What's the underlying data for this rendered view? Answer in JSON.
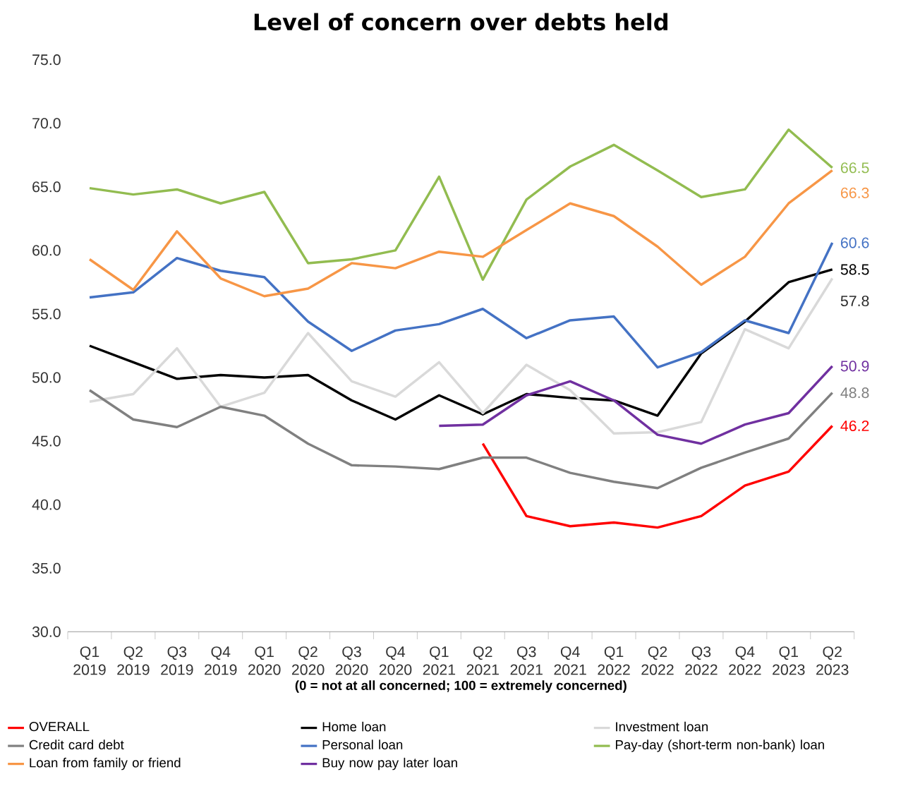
{
  "chart_data": {
    "type": "line",
    "title": "Level of concern over debts held",
    "xlabel": "(0 = not at all concerned; 100 = extremely concerned)",
    "categories": [
      "Q1 2019",
      "Q2 2019",
      "Q3 2019",
      "Q4 2019",
      "Q1 2020",
      "Q2 2020",
      "Q3 2020",
      "Q4 2020",
      "Q1 2021",
      "Q2 2021",
      "Q3 2021",
      "Q4 2021",
      "Q1 2022",
      "Q2 2022",
      "Q3 2022",
      "Q4 2022",
      "Q1 2023",
      "Q2 2023"
    ],
    "series": [
      {
        "name": "OVERALL",
        "color": "#ff0000",
        "values": [
          null,
          null,
          null,
          null,
          null,
          null,
          null,
          null,
          null,
          44.8,
          39.1,
          38.3,
          38.6,
          38.2,
          39.1,
          41.5,
          42.6,
          46.2
        ],
        "value_labels": [
          null,
          null,
          null,
          null,
          null,
          null,
          null,
          null,
          null,
          null,
          null,
          null,
          null,
          null,
          null,
          null,
          null,
          "46.2"
        ]
      },
      {
        "name": "Home loan",
        "color": "#000000",
        "values": [
          52.5,
          51.2,
          49.9,
          50.2,
          50.0,
          50.2,
          48.2,
          46.7,
          48.6,
          47.1,
          48.7,
          48.4,
          48.2,
          47.0,
          51.9,
          54.4,
          57.5,
          58.5
        ],
        "value_labels": [
          null,
          null,
          null,
          null,
          null,
          null,
          null,
          null,
          null,
          null,
          null,
          null,
          null,
          null,
          null,
          null,
          null,
          "58.5"
        ]
      },
      {
        "name": "Investment loan",
        "color": "#d9d9d9",
        "values": [
          48.1,
          48.7,
          52.3,
          47.7,
          48.8,
          53.5,
          49.7,
          48.5,
          51.2,
          47.2,
          51.0,
          49.0,
          45.6,
          45.7,
          46.5,
          53.8,
          52.3,
          57.8
        ],
        "value_labels": [
          null,
          null,
          null,
          null,
          null,
          null,
          null,
          null,
          null,
          null,
          null,
          null,
          null,
          null,
          null,
          null,
          null,
          "57.8"
        ]
      },
      {
        "name": "Credit card debt",
        "color": "#808080",
        "values": [
          49.0,
          46.7,
          46.1,
          47.7,
          47.0,
          44.8,
          43.1,
          43.0,
          42.8,
          43.7,
          43.7,
          42.5,
          41.8,
          41.3,
          42.9,
          44.1,
          45.2,
          48.8
        ],
        "value_labels": [
          null,
          null,
          null,
          null,
          null,
          null,
          null,
          null,
          null,
          null,
          null,
          null,
          null,
          null,
          null,
          null,
          null,
          "48.8"
        ]
      },
      {
        "name": "Personal loan",
        "color": "#4472c4",
        "values": [
          56.3,
          56.7,
          59.4,
          58.4,
          57.9,
          54.4,
          52.1,
          53.7,
          54.2,
          55.4,
          53.1,
          54.5,
          54.8,
          50.8,
          52.0,
          54.5,
          53.5,
          60.6
        ],
        "value_labels": [
          null,
          null,
          null,
          null,
          null,
          null,
          null,
          null,
          null,
          null,
          null,
          null,
          null,
          null,
          null,
          null,
          null,
          "60.6"
        ]
      },
      {
        "name": "Pay-day (short-term non-bank) loan",
        "color": "#92bc50",
        "values": [
          64.9,
          64.4,
          64.8,
          63.7,
          64.6,
          59.0,
          59.3,
          60.0,
          65.8,
          57.7,
          64.0,
          66.6,
          68.3,
          66.3,
          64.2,
          64.8,
          69.5,
          66.5
        ],
        "value_labels": [
          null,
          null,
          null,
          null,
          null,
          null,
          null,
          null,
          null,
          null,
          null,
          null,
          null,
          null,
          null,
          null,
          null,
          "66.5"
        ]
      },
      {
        "name": "Loan from family or friend",
        "color": "#f79646",
        "values": [
          59.3,
          56.9,
          61.5,
          57.8,
          56.4,
          57.0,
          59.0,
          58.6,
          59.9,
          59.5,
          61.6,
          63.7,
          62.7,
          60.3,
          57.3,
          59.5,
          63.7,
          66.3
        ],
        "value_labels": [
          null,
          null,
          null,
          null,
          null,
          null,
          null,
          null,
          null,
          null,
          null,
          null,
          null,
          null,
          null,
          null,
          null,
          "66.3"
        ]
      },
      {
        "name": "Buy now pay later loan",
        "color": "#7030a0",
        "values": [
          null,
          null,
          null,
          null,
          null,
          null,
          null,
          null,
          46.2,
          46.3,
          48.6,
          49.7,
          48.2,
          45.5,
          44.8,
          46.3,
          47.2,
          50.9
        ],
        "value_labels": [
          null,
          null,
          null,
          null,
          null,
          null,
          null,
          null,
          null,
          null,
          null,
          null,
          null,
          null,
          null,
          null,
          null,
          "50.9"
        ]
      }
    ],
    "ylim": [
      30,
      75
    ],
    "yticks": [
      {
        "value": 30,
        "label": "30.0"
      },
      {
        "value": 35,
        "label": "35.0"
      },
      {
        "value": 40,
        "label": "40.0"
      },
      {
        "value": 45,
        "label": "45.0"
      },
      {
        "value": 50,
        "label": "50.0"
      },
      {
        "value": 55,
        "label": "55.0"
      },
      {
        "value": 60,
        "label": "60.0"
      },
      {
        "value": 65,
        "label": "65.0"
      },
      {
        "value": 70,
        "label": "70.0"
      },
      {
        "value": 75,
        "label": "75.0"
      }
    ],
    "legend": "bottom",
    "grid": false,
    "marker": "none",
    "line_style": "solid"
  }
}
